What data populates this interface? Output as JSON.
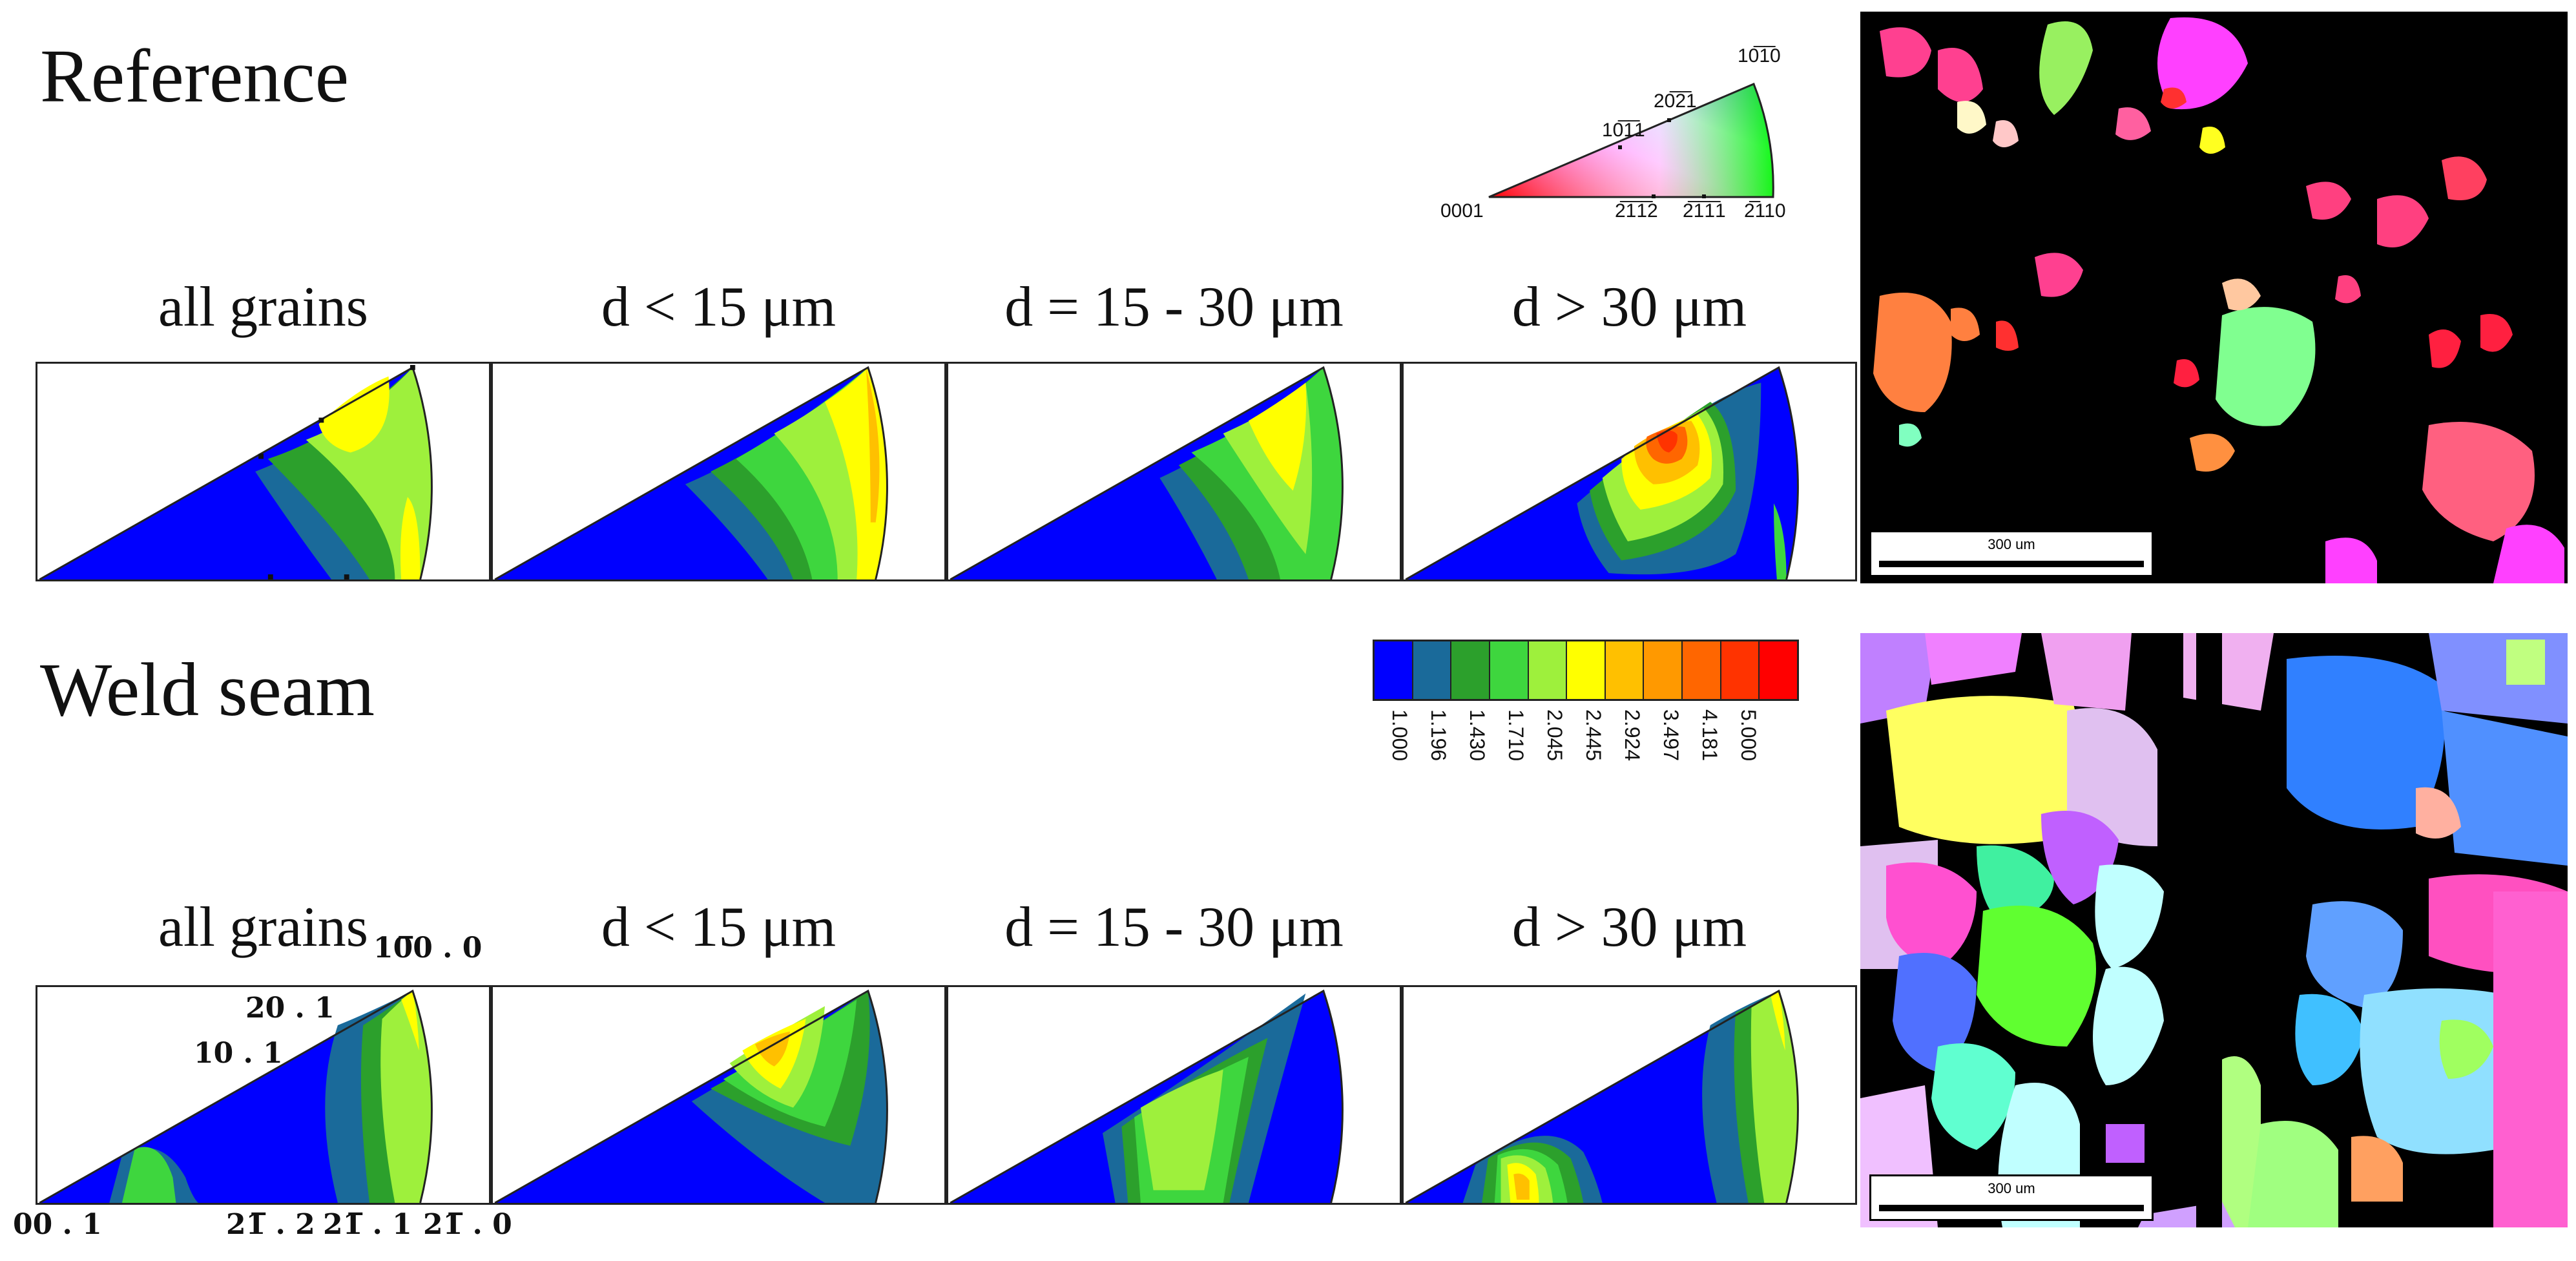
{
  "sections": {
    "reference": {
      "title": "Reference",
      "panels": [
        "all grains",
        "d < 15 μm",
        "d = 15 - 30 μm",
        "d > 30 μm"
      ],
      "map_scale": "300 um"
    },
    "weld_seam": {
      "title": "Weld seam",
      "panels": [
        "all grains",
        "d < 15 μm",
        "d = 15 - 30 μm",
        "d > 30 μm"
      ],
      "map_scale": "300 um"
    }
  },
  "color_key": {
    "corners": {
      "origin": "0001",
      "bottom_right": "2̅110",
      "top": "10̅1̅0"
    },
    "pole_labels": [
      "20̅2̅1",
      "10̅1̅1",
      "2̅1̅1̅2",
      "2̅1̅1̅1"
    ]
  },
  "legend": {
    "colors": [
      "#0000ff",
      "#1a6a9a",
      "#2ca02c",
      "#3ed63e",
      "#9ef03c",
      "#ffff00",
      "#ffc000",
      "#ff9900",
      "#ff6600",
      "#ff3300",
      "#ff0000"
    ],
    "values": [
      "1.000",
      "1.196",
      "1.430",
      "1.710",
      "2.045",
      "2.445",
      "2.924",
      "3.497",
      "4.181",
      "5.000"
    ]
  },
  "weld_axis_labels": {
    "top": "10̅0 . 0",
    "pole_2": "20 . 1",
    "pole_1": "10 . 1",
    "origin": "00 . 1",
    "bottom_1": "21̅ . 2",
    "bottom_2": "21̅ . 1",
    "bottom_3": "21̅ . 0"
  }
}
